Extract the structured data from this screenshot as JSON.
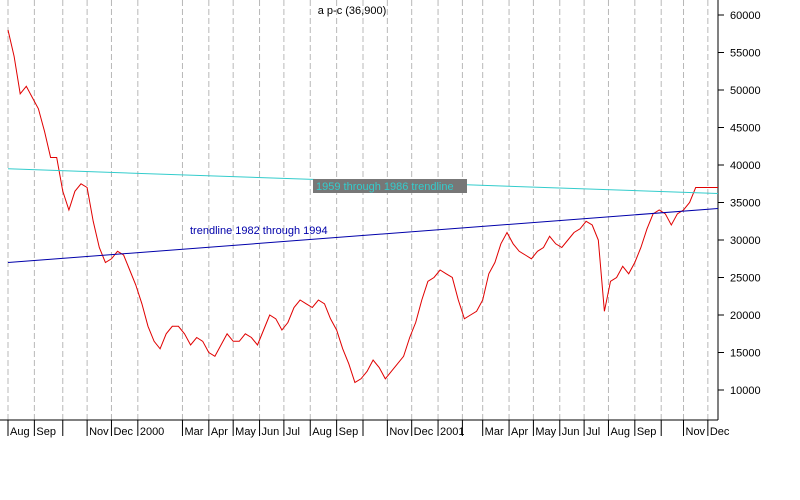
{
  "chart_data": {
    "type": "line",
    "title": "a p-c (36,900)",
    "ylim": [
      6000,
      62000
    ],
    "y_ticks": [
      10000,
      15000,
      20000,
      25000,
      30000,
      35000,
      40000,
      45000,
      50000,
      55000,
      60000
    ],
    "x_range": [
      0,
      700
    ],
    "grid": "vertical dashed at month ticks",
    "x_ticks": [
      {
        "x": 0,
        "label": "Aug"
      },
      {
        "x": 26,
        "label": "Sep"
      },
      {
        "x": 54,
        "label": ""
      },
      {
        "x": 78,
        "label": "Nov"
      },
      {
        "x": 102,
        "label": "Dec"
      },
      {
        "x": 128,
        "label": "2000"
      },
      {
        "x": 172,
        "label": "Mar"
      },
      {
        "x": 198,
        "label": "Apr"
      },
      {
        "x": 222,
        "label": "May"
      },
      {
        "x": 248,
        "label": "Jun"
      },
      {
        "x": 272,
        "label": "Jul"
      },
      {
        "x": 298,
        "label": "Aug"
      },
      {
        "x": 324,
        "label": "Sep"
      },
      {
        "x": 350,
        "label": ""
      },
      {
        "x": 374,
        "label": "Nov"
      },
      {
        "x": 398,
        "label": "Dec"
      },
      {
        "x": 424,
        "label": "2001"
      },
      {
        "x": 448,
        "label": ""
      },
      {
        "x": 468,
        "label": "Mar"
      },
      {
        "x": 494,
        "label": "Apr"
      },
      {
        "x": 518,
        "label": "May"
      },
      {
        "x": 544,
        "label": "Jun"
      },
      {
        "x": 568,
        "label": "Jul"
      },
      {
        "x": 592,
        "label": "Aug"
      },
      {
        "x": 618,
        "label": "Sep"
      },
      {
        "x": 644,
        "label": ""
      },
      {
        "x": 666,
        "label": "Nov"
      },
      {
        "x": 690,
        "label": "Dec"
      }
    ],
    "series": [
      {
        "color": "#e00000",
        "x": [
          0,
          6,
          12,
          18,
          24,
          30,
          36,
          42,
          48,
          54,
          60,
          66,
          72,
          78,
          84,
          90,
          96,
          102,
          108,
          114,
          120,
          126,
          132,
          138,
          144,
          150,
          156,
          162,
          168,
          174,
          180,
          186,
          192,
          198,
          204,
          210,
          216,
          222,
          228,
          234,
          240,
          246,
          252,
          258,
          264,
          270,
          276,
          282,
          288,
          294,
          300,
          306,
          312,
          318,
          324,
          330,
          336,
          342,
          348,
          354,
          360,
          366,
          372,
          378,
          384,
          390,
          396,
          402,
          408,
          414,
          420,
          426,
          432,
          438,
          444,
          450,
          456,
          462,
          468,
          474,
          480,
          486,
          492,
          498,
          504,
          510,
          516,
          522,
          528,
          534,
          540,
          546,
          552,
          558,
          564,
          570,
          576,
          582,
          588,
          594,
          600,
          606,
          612,
          618,
          624,
          630,
          636,
          642,
          648,
          654,
          660,
          666,
          672,
          678,
          684,
          690,
          696,
          700
        ],
        "values": [
          58000,
          54500,
          49500,
          50500,
          49000,
          47500,
          44500,
          41000,
          41000,
          36500,
          34000,
          36500,
          37500,
          37000,
          32500,
          29000,
          27000,
          27500,
          28500,
          28000,
          26000,
          24000,
          21500,
          18500,
          16500,
          15500,
          17500,
          18500,
          18500,
          17500,
          16000,
          17000,
          16500,
          15000,
          14500,
          16000,
          17500,
          16500,
          16500,
          17500,
          17000,
          16000,
          18000,
          20000,
          19500,
          18000,
          19000,
          21000,
          22000,
          21500,
          21000,
          22000,
          21500,
          19500,
          18000,
          15500,
          13500,
          11000,
          11500,
          12500,
          14000,
          13000,
          11500,
          12500,
          13500,
          14500,
          17000,
          19000,
          22000,
          24500,
          25000,
          26000,
          25500,
          25000,
          22000,
          19500,
          20000,
          20500,
          22000,
          25500,
          27000,
          29500,
          31000,
          29500,
          28500,
          28000,
          27500,
          28500,
          29000,
          30500,
          29500,
          29000,
          30000,
          31000,
          31500,
          32500,
          32000,
          30000,
          20500,
          24500,
          25000,
          26500,
          25500,
          27000,
          29000,
          31500,
          33500,
          34000,
          33500,
          32000,
          33500,
          34000,
          35000,
          37000,
          37000,
          37000,
          37000,
          37000
        ]
      },
      {
        "name": "1959 through 1986 trendline",
        "color": "#33cccc",
        "x": [
          0,
          700
        ],
        "values": [
          39500,
          36200
        ]
      },
      {
        "name": "trendline 1982 through 1994",
        "color": "#0000aa",
        "x": [
          0,
          700
        ],
        "values": [
          27000,
          34200
        ]
      }
    ],
    "annotations": [
      {
        "text": "1959 through 1986 trendline",
        "color": "#33cccc",
        "background": "#777777"
      },
      {
        "text": "trendline 1982 through 1994",
        "color": "#0000aa"
      }
    ]
  }
}
